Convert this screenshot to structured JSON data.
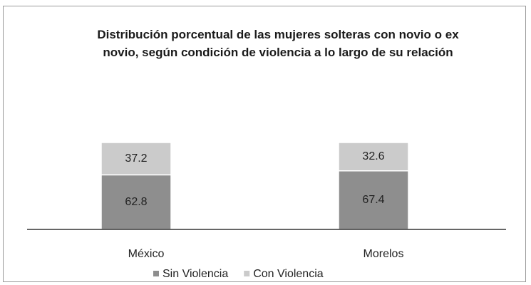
{
  "chart_data": {
    "type": "stacked_bar",
    "title": "Distribución porcentual de las mujeres solteras con novio o ex novio, según condición de violencia a lo largo de su relación",
    "categories": [
      "México",
      "Morelos"
    ],
    "series": [
      {
        "name": "Sin Violencia",
        "color": "#8e8e8e",
        "values": [
          62.8,
          67.4
        ]
      },
      {
        "name": "Con Violencia",
        "color": "#cbcbcb",
        "values": [
          37.2,
          32.6
        ]
      }
    ],
    "legend": "bottom"
  }
}
